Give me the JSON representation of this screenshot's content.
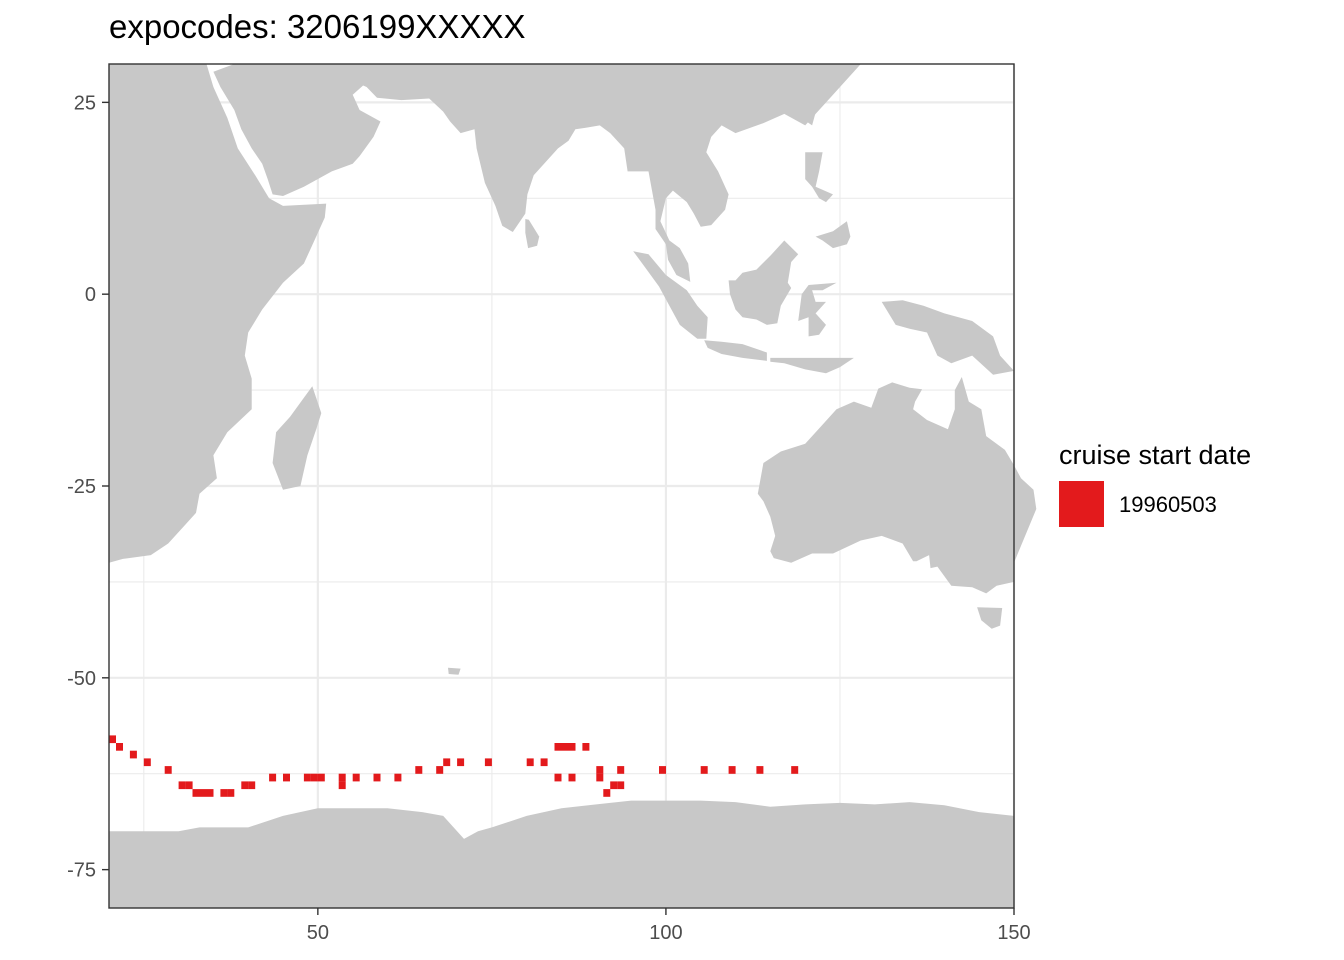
{
  "title": "expocodes: 3206199XXXXX",
  "colors": {
    "land": "#c8c8c8",
    "panel": "#ffffff",
    "grid": "#ebebeb",
    "border": "#333333",
    "tick_text": "#4d4d4d",
    "series": "#e31a1c"
  },
  "chart_data": {
    "type": "scatter",
    "title": "expocodes: 3206199XXXXX",
    "xlabel": "",
    "ylabel": "",
    "xlim": [
      20,
      150
    ],
    "ylim": [
      -80,
      30
    ],
    "x_ticks": [
      50,
      100,
      150
    ],
    "y_ticks": [
      25,
      0,
      -25,
      -50,
      -75
    ],
    "grid": true,
    "legend": {
      "title": "cruise start date",
      "placement": "right"
    },
    "series": [
      {
        "name": "19960503",
        "color": "#e31a1c",
        "points": [
          [
            20.5,
            -58
          ],
          [
            21.5,
            -59
          ],
          [
            23.5,
            -60
          ],
          [
            25.5,
            -61
          ],
          [
            28.5,
            -62
          ],
          [
            30.5,
            -64
          ],
          [
            31.5,
            -64
          ],
          [
            32.5,
            -65
          ],
          [
            33.5,
            -65
          ],
          [
            34.5,
            -65
          ],
          [
            36.5,
            -65
          ],
          [
            37.5,
            -65
          ],
          [
            39.5,
            -64
          ],
          [
            40.5,
            -64
          ],
          [
            43.5,
            -63
          ],
          [
            45.5,
            -63
          ],
          [
            48.5,
            -63
          ],
          [
            49.5,
            -63
          ],
          [
            50.5,
            -63
          ],
          [
            53.5,
            -63
          ],
          [
            53.5,
            -64
          ],
          [
            55.5,
            -63
          ],
          [
            58.5,
            -63
          ],
          [
            61.5,
            -63
          ],
          [
            64.5,
            -62
          ],
          [
            67.5,
            -62
          ],
          [
            68.5,
            -61
          ],
          [
            70.5,
            -61
          ],
          [
            74.5,
            -61
          ],
          [
            80.5,
            -61
          ],
          [
            82.5,
            -61
          ],
          [
            84.5,
            -59
          ],
          [
            85.5,
            -59
          ],
          [
            86.5,
            -59
          ],
          [
            88.5,
            -59
          ],
          [
            84.5,
            -63
          ],
          [
            86.5,
            -63
          ],
          [
            90.5,
            -62
          ],
          [
            90.5,
            -63
          ],
          [
            91.5,
            -65
          ],
          [
            92.5,
            -64
          ],
          [
            93.5,
            -64
          ],
          [
            93.5,
            -62
          ],
          [
            99.5,
            -62
          ],
          [
            105.5,
            -62
          ],
          [
            109.5,
            -62
          ],
          [
            113.5,
            -62
          ],
          [
            118.5,
            -62
          ]
        ]
      }
    ]
  }
}
